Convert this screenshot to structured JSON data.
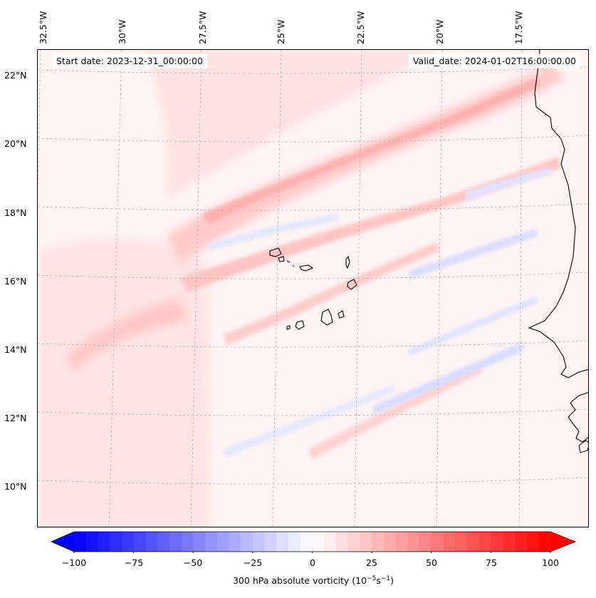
{
  "title_left": "Start date: 2023-12-31_00:00:00",
  "title_right": "Valid_date: 2024-01-02T16:00:00.00",
  "longitude_labels": [
    "32.5°W",
    "30°W",
    "27.5°W",
    "25°W",
    "22.5°W",
    "20°W",
    "17.5°W"
  ],
  "latitude_labels": [
    "22°N",
    "20°N",
    "18°N",
    "16°N",
    "14°N",
    "12°N",
    "10°N"
  ],
  "colorbar": {
    "min": -100,
    "max": 100,
    "ticks": [
      "−100",
      "−75",
      "−50",
      "−25",
      "0",
      "25",
      "50",
      "75",
      "100"
    ],
    "label_text": "300 hPa absolute vorticity (10",
    "label_exp1": "−5",
    "label_mid": "s",
    "label_exp2": "−1",
    "label_end": ")",
    "neg_color": "#0000ff",
    "pos_color": "#ff0000"
  },
  "colors": {
    "coastline": "#000000",
    "gridline": "#b0b0b0"
  }
}
